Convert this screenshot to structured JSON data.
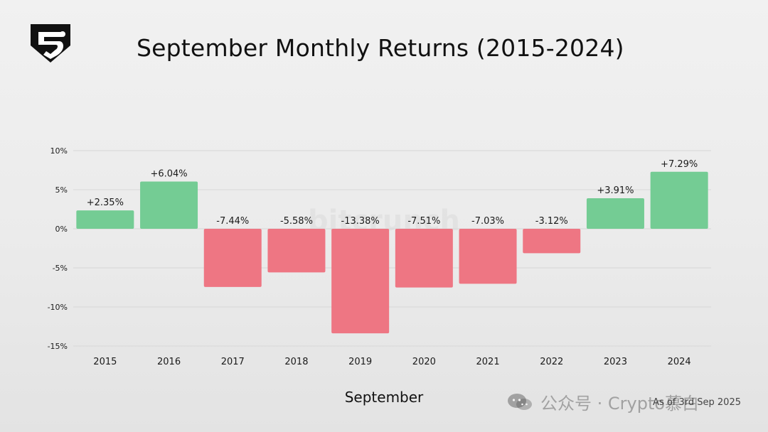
{
  "page": {
    "title": "September Monthly Returns (2015-2024)",
    "note": "As of 3rd Sep 2025",
    "watermark": "bitcrunch",
    "wechat_overlay": "公众号 · Crypto慕白"
  },
  "chart_data": {
    "type": "bar",
    "title": "September Monthly Returns (2015-2024)",
    "xlabel": "September",
    "ylabel": "",
    "categories": [
      "2015",
      "2016",
      "2017",
      "2018",
      "2019",
      "2020",
      "2021",
      "2022",
      "2023",
      "2024"
    ],
    "values": [
      2.35,
      6.04,
      -7.44,
      -5.58,
      -13.38,
      -7.51,
      -7.03,
      -3.12,
      3.91,
      7.29
    ],
    "data_labels": [
      "+2.35%",
      "+6.04%",
      "-7.44%",
      "-5.58%",
      "-13.38%",
      "-7.51%",
      "-7.03%",
      "-3.12%",
      "+3.91%",
      "+7.29%"
    ],
    "ylim": [
      -15,
      10
    ],
    "yticks": [
      10,
      5,
      0,
      -5,
      -10,
      -15
    ],
    "ytick_labels": [
      "10%",
      "5%",
      "0%",
      "-5%",
      "-10%",
      "-15%"
    ],
    "grid": true,
    "legend": "none",
    "colors": {
      "positive": "#74cc94",
      "negative": "#ee7683",
      "grid": "#d7d7d7",
      "text": "#1a1a1a"
    }
  },
  "icons": {
    "logo": "shield-logo-icon",
    "wechat": "wechat-icon"
  }
}
